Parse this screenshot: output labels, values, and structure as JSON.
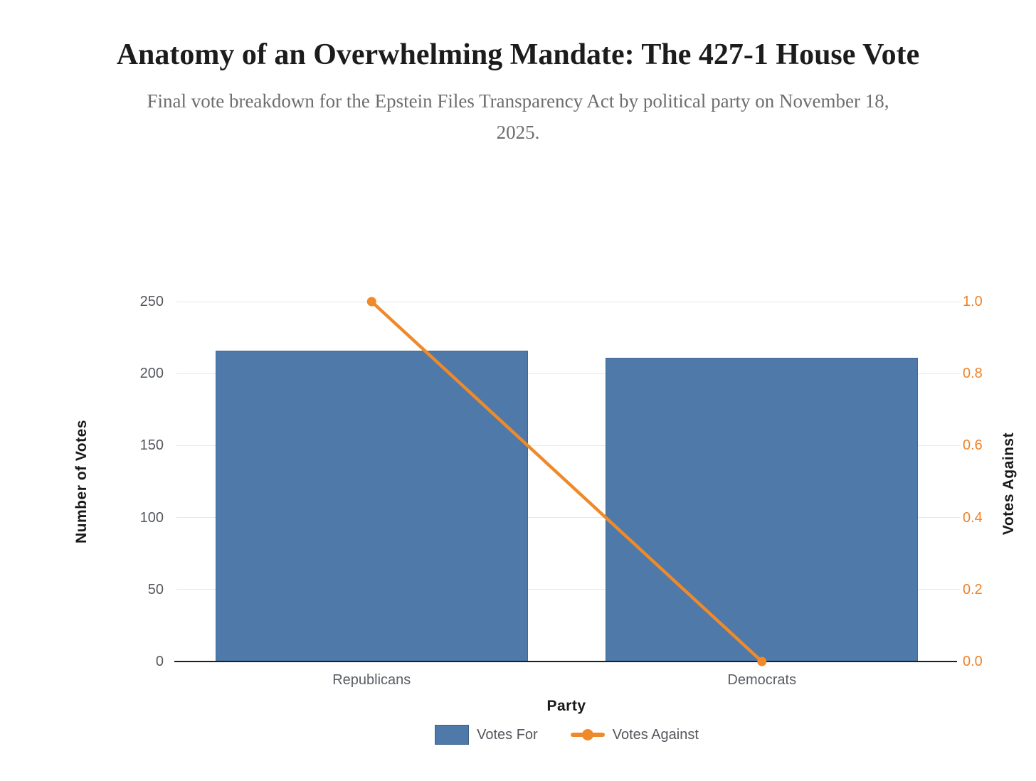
{
  "chart_data": {
    "type": "bar+line",
    "title": "Anatomy of an Overwhelming Mandate: The 427-1 House Vote",
    "subtitle": "Final vote breakdown for the Epstein Files Transparency Act by political party on November 18, 2025.",
    "categories": [
      "Republicans",
      "Democrats"
    ],
    "series": [
      {
        "name": "Votes For",
        "type": "bar",
        "axis": "left",
        "values": [
          216,
          211
        ],
        "color": "#4e79a8"
      },
      {
        "name": "Votes Against",
        "type": "line",
        "axis": "right",
        "values": [
          1,
          0
        ],
        "color": "#ef8a2b"
      }
    ],
    "xlabel": "Party",
    "left_axis": {
      "label": "Number of Votes",
      "min": 0,
      "max": 250,
      "ticks": [
        0,
        50,
        100,
        150,
        200,
        250
      ]
    },
    "right_axis": {
      "label": "Votes Against",
      "min": 0.0,
      "max": 1.0,
      "ticks": [
        "0.0",
        "0.2",
        "0.4",
        "0.6",
        "0.8",
        "1.0"
      ]
    },
    "grid": true,
    "legend_position": "bottom",
    "colors": {
      "bar": "#4e79a8",
      "line": "#ef8a2b",
      "right_tick_text": "#ef8329",
      "left_tick_text": "#54575c",
      "gridline": "#e8e8ec",
      "axis_line": "#1f1f1f",
      "title_text": "#1c1c1c",
      "subtitle_text": "#6d6d6d"
    }
  }
}
